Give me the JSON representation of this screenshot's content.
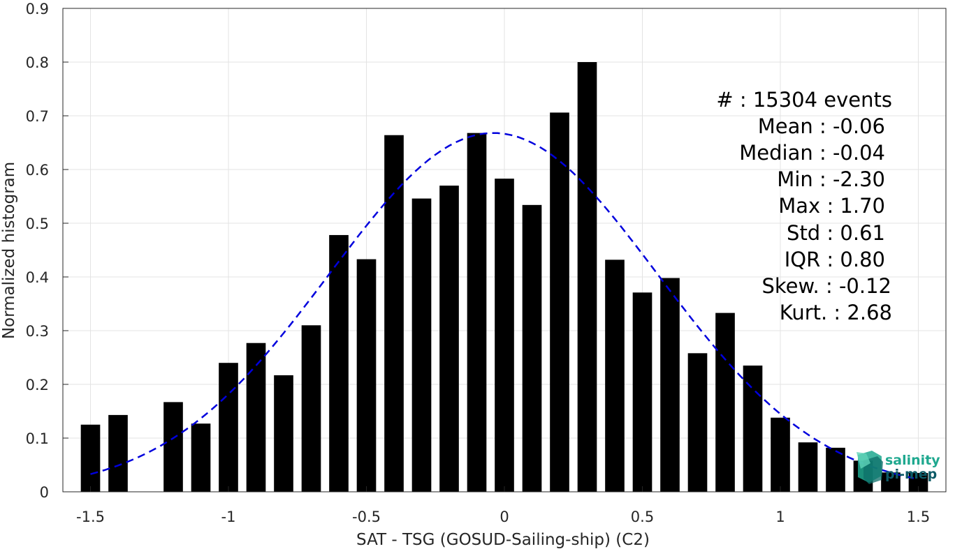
{
  "chart_data": {
    "type": "bar",
    "xlabel": "SAT - TSG (GOSUD-Sailing-ship) (C2)",
    "ylabel": "Normalized histogram",
    "xlim": [
      -1.6,
      1.6
    ],
    "ylim": [
      0,
      0.9
    ],
    "xticks": [
      "-1.5",
      "-1",
      "-0.5",
      "0",
      "0.5",
      "1",
      "1.5"
    ],
    "xtick_values": [
      -1.5,
      -1,
      -0.5,
      0,
      0.5,
      1,
      1.5
    ],
    "yticks": [
      "0",
      "0.1",
      "0.2",
      "0.3",
      "0.4",
      "0.5",
      "0.6",
      "0.7",
      "0.8",
      "0.9"
    ],
    "ytick_values": [
      0,
      0.1,
      0.2,
      0.3,
      0.4,
      0.5,
      0.6,
      0.7,
      0.8,
      0.9
    ],
    "grid": true,
    "bar_width": 0.07,
    "x": [
      -1.5,
      -1.4,
      -1.3,
      -1.2,
      -1.1,
      -1.0,
      -0.9,
      -0.8,
      -0.7,
      -0.6,
      -0.5,
      -0.4,
      -0.3,
      -0.2,
      -0.1,
      0.0,
      0.1,
      0.2,
      0.3,
      0.4,
      0.5,
      0.6,
      0.7,
      0.8,
      0.9,
      1.0,
      1.1,
      1.2,
      1.3,
      1.4,
      1.5
    ],
    "values": [
      0.125,
      0.143,
      0,
      0.167,
      0.127,
      0.24,
      0.277,
      0.217,
      0.31,
      0.478,
      0.433,
      0.664,
      0.546,
      0.57,
      0.668,
      0.583,
      0.534,
      0.706,
      0.8,
      0.432,
      0.371,
      0.398,
      0.258,
      0.333,
      0.235,
      0.138,
      0.092,
      0.082,
      0.058,
      0.036,
      0.035
    ],
    "fit_curve": {
      "style": "dashed",
      "color": "#0000dd",
      "mean": -0.04,
      "std": 0.595,
      "peak": 0.668,
      "x_range": [
        -1.5,
        1.5
      ]
    },
    "bar_color": "#000000"
  },
  "stats": {
    "lines": [
      "#  : 15304 events",
      "Mean : -0.06",
      "Median : -0.04",
      "Min : -2.30",
      "Max : 1.70",
      "Std : 0.61",
      "IQR : 0.80",
      "Skew. : -0.12",
      "Kurt. : 2.68"
    ]
  },
  "logo": {
    "line1": "salinity",
    "line2": "pi-mep",
    "color1": "#1fa88f",
    "color2": "#0d5a66"
  }
}
